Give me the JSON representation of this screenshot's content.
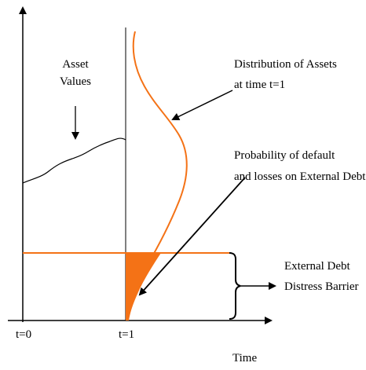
{
  "labels": {
    "asset_values_line1": "Asset",
    "asset_values_line2": "Values",
    "distribution_line1": "Distribution of Assets",
    "distribution_line2": "at time t=1",
    "probability_line1": "Probability of default",
    "probability_line2": "and losses on External Debt",
    "barrier_line1": "External Debt",
    "barrier_line2": "Distress Barrier",
    "t0": "t=0",
    "t1": "t=1",
    "time": "Time"
  },
  "colors": {
    "axis": "#000000",
    "distribution": "#f47216",
    "barrier": "#f47216",
    "default_area": "#f47216"
  }
}
